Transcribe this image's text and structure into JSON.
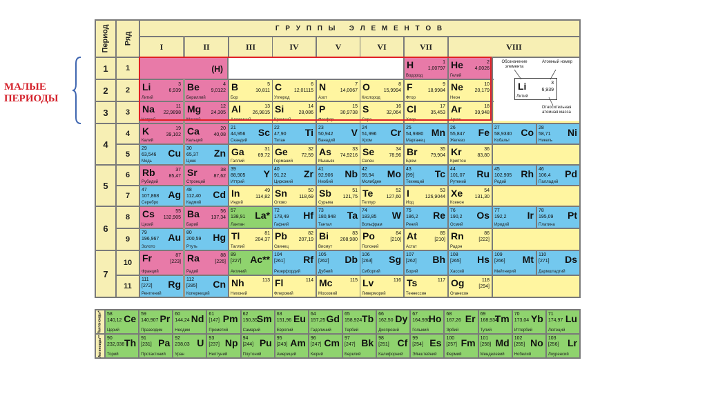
{
  "annotation": "МАЛЫЕ ПЕРИОДЫ",
  "header": {
    "period": "Период",
    "row": "Ряд",
    "groups_title": "Г Р У П П Ы   Э Л Е М Е Н Т О В",
    "groups": [
      "I",
      "II",
      "III",
      "IV",
      "V",
      "VI",
      "VII",
      "VIII"
    ]
  },
  "periods": [
    "1",
    "2",
    "3",
    "4",
    "5",
    "6",
    "7"
  ],
  "rows": [
    "1",
    "2",
    "3",
    "4",
    "5",
    "6",
    "7",
    "8",
    "9",
    "10",
    "11"
  ],
  "legend": {
    "designation": "Обозначение элемента",
    "atomic_number": "Атомный номер",
    "relative_mass": "Относительная атомная масса",
    "symbol": "Li",
    "number": "3",
    "mass": "6,939",
    "name": "Литий"
  },
  "row1_h_label": "(H)",
  "elements": [
    {
      "s": "H",
      "n": "1",
      "m": "1,00797",
      "nm": "Водород",
      "row": 1,
      "col": 6,
      "c": "p",
      "side": "L"
    },
    {
      "s": "He",
      "n": "2",
      "m": "4,0026",
      "nm": "Гелий",
      "row": 1,
      "col": 7,
      "c": "p",
      "side": "L"
    },
    {
      "s": "Li",
      "n": "3",
      "m": "6,939",
      "nm": "Литий",
      "row": 2,
      "col": 0,
      "c": "p",
      "side": "L"
    },
    {
      "s": "Be",
      "n": "4",
      "m": "9,0122",
      "nm": "Бериллий",
      "row": 2,
      "col": 1,
      "c": "p",
      "side": "L"
    },
    {
      "s": "B",
      "n": "5",
      "m": "10,811",
      "nm": "Бор",
      "row": 2,
      "col": 2,
      "c": "y",
      "side": "L"
    },
    {
      "s": "C",
      "n": "6",
      "m": "12,01115",
      "nm": "Углерод",
      "row": 2,
      "col": 3,
      "c": "y",
      "side": "L"
    },
    {
      "s": "N",
      "n": "7",
      "m": "14,0067",
      "nm": "Азот",
      "row": 2,
      "col": 4,
      "c": "y",
      "side": "L"
    },
    {
      "s": "O",
      "n": "8",
      "m": "15,9994",
      "nm": "Кислород",
      "row": 2,
      "col": 5,
      "c": "y",
      "side": "L"
    },
    {
      "s": "F",
      "n": "9",
      "m": "18,9984",
      "nm": "Фтор",
      "row": 2,
      "col": 6,
      "c": "y",
      "side": "L"
    },
    {
      "s": "Ne",
      "n": "10",
      "m": "20,179",
      "nm": "Неон",
      "row": 2,
      "col": 7,
      "c": "y",
      "side": "L"
    },
    {
      "s": "Na",
      "n": "11",
      "m": "22,9898",
      "nm": "Натрий",
      "row": 3,
      "col": 0,
      "c": "p",
      "side": "L"
    },
    {
      "s": "Mg",
      "n": "12",
      "m": "24,305",
      "nm": "Магний",
      "row": 3,
      "col": 1,
      "c": "p",
      "side": "L"
    },
    {
      "s": "Al",
      "n": "13",
      "m": "26,9815",
      "nm": "Алюминий",
      "row": 3,
      "col": 2,
      "c": "y",
      "side": "L"
    },
    {
      "s": "Si",
      "n": "14",
      "m": "28,086",
      "nm": "Кремний",
      "row": 3,
      "col": 3,
      "c": "y",
      "side": "L"
    },
    {
      "s": "P",
      "n": "15",
      "m": "30,9738",
      "nm": "Фосфор",
      "row": 3,
      "col": 4,
      "c": "y",
      "side": "L"
    },
    {
      "s": "S",
      "n": "16",
      "m": "32,064",
      "nm": "Сера",
      "row": 3,
      "col": 5,
      "c": "y",
      "side": "L"
    },
    {
      "s": "Cl",
      "n": "17",
      "m": "35,453",
      "nm": "Хлор",
      "row": 3,
      "col": 6,
      "c": "y",
      "side": "L"
    },
    {
      "s": "Ar",
      "n": "18",
      "m": "39,948",
      "nm": "Аргон",
      "row": 3,
      "col": 7,
      "c": "y",
      "side": "L"
    },
    {
      "s": "K",
      "n": "19",
      "m": "39,102",
      "nm": "Калий",
      "row": 4,
      "col": 0,
      "c": "p",
      "side": "L"
    },
    {
      "s": "Ca",
      "n": "20",
      "m": "40,08",
      "nm": "Кальций",
      "row": 4,
      "col": 1,
      "c": "p",
      "side": "L"
    },
    {
      "s": "Sc",
      "n": "21",
      "m": "44,956",
      "nm": "Скандий",
      "row": 4,
      "col": 2,
      "c": "b",
      "side": "R"
    },
    {
      "s": "Ti",
      "n": "22",
      "m": "47,90",
      "nm": "Титан",
      "row": 4,
      "col": 3,
      "c": "b",
      "side": "R"
    },
    {
      "s": "V",
      "n": "23",
      "m": "50,942",
      "nm": "Ванадий",
      "row": 4,
      "col": 4,
      "c": "b",
      "side": "R"
    },
    {
      "s": "Cr",
      "n": "24",
      "m": "51,996",
      "nm": "Хром",
      "row": 4,
      "col": 5,
      "c": "b",
      "side": "R"
    },
    {
      "s": "Mn",
      "n": "25",
      "m": "54,9380",
      "nm": "Марганец",
      "row": 4,
      "col": 6,
      "c": "b",
      "side": "R"
    },
    {
      "s": "Fe",
      "n": "26",
      "m": "55,847",
      "nm": "Железо",
      "row": 4,
      "col": 7,
      "c": "b",
      "side": "R"
    },
    {
      "s": "Co",
      "n": "27",
      "m": "58,9330",
      "nm": "Кобальт",
      "row": 4,
      "col": 8,
      "c": "b",
      "side": "R"
    },
    {
      "s": "Ni",
      "n": "28",
      "m": "58,71",
      "nm": "Никель",
      "row": 4,
      "col": 9,
      "c": "b",
      "side": "R"
    },
    {
      "s": "Cu",
      "n": "29",
      "m": "63,546",
      "nm": "Медь",
      "row": 5,
      "col": 0,
      "c": "b",
      "side": "R"
    },
    {
      "s": "Zn",
      "n": "30",
      "m": "65,37",
      "nm": "Цинк",
      "row": 5,
      "col": 1,
      "c": "b",
      "side": "R"
    },
    {
      "s": "Ga",
      "n": "31",
      "m": "69,72",
      "nm": "Галлий",
      "row": 5,
      "col": 2,
      "c": "y",
      "side": "L"
    },
    {
      "s": "Ge",
      "n": "32",
      "m": "72,59",
      "nm": "Германий",
      "row": 5,
      "col": 3,
      "c": "y",
      "side": "L"
    },
    {
      "s": "As",
      "n": "33",
      "m": "74,9216",
      "nm": "Мышьяк",
      "row": 5,
      "col": 4,
      "c": "y",
      "side": "L"
    },
    {
      "s": "Se",
      "n": "34",
      "m": "78,96",
      "nm": "Селен",
      "row": 5,
      "col": 5,
      "c": "y",
      "side": "L"
    },
    {
      "s": "Br",
      "n": "35",
      "m": "79,904",
      "nm": "Бром",
      "row": 5,
      "col": 6,
      "c": "y",
      "side": "L"
    },
    {
      "s": "Kr",
      "n": "36",
      "m": "83,80",
      "nm": "Криптон",
      "row": 5,
      "col": 7,
      "c": "y",
      "side": "L"
    },
    {
      "s": "Rb",
      "n": "37",
      "m": "85,47",
      "nm": "Рубидий",
      "row": 6,
      "col": 0,
      "c": "p",
      "side": "L"
    },
    {
      "s": "Sr",
      "n": "38",
      "m": "87,62",
      "nm": "Стронций",
      "row": 6,
      "col": 1,
      "c": "p",
      "side": "L"
    },
    {
      "s": "Y",
      "n": "39",
      "m": "88,905",
      "nm": "Иттрий",
      "row": 6,
      "col": 2,
      "c": "b",
      "side": "R"
    },
    {
      "s": "Zr",
      "n": "40",
      "m": "91,22",
      "nm": "Цирконий",
      "row": 6,
      "col": 3,
      "c": "b",
      "side": "R"
    },
    {
      "s": "Nb",
      "n": "41",
      "m": "92,906",
      "nm": "Ниобий",
      "row": 6,
      "col": 4,
      "c": "b",
      "side": "R"
    },
    {
      "s": "Mo",
      "n": "42",
      "m": "95,94",
      "nm": "Молибден",
      "row": 6,
      "col": 5,
      "c": "b",
      "side": "R"
    },
    {
      "s": "Tc",
      "n": "43",
      "m": "[99]",
      "nm": "Технеций",
      "row": 6,
      "col": 6,
      "c": "b",
      "side": "R"
    },
    {
      "s": "Ru",
      "n": "44",
      "m": "101,07",
      "nm": "Рутений",
      "row": 6,
      "col": 7,
      "c": "b",
      "side": "R"
    },
    {
      "s": "Rh",
      "n": "45",
      "m": "102,905",
      "nm": "Родий",
      "row": 6,
      "col": 8,
      "c": "b",
      "side": "R"
    },
    {
      "s": "Pd",
      "n": "46",
      "m": "106,4",
      "nm": "Палладий",
      "row": 6,
      "col": 9,
      "c": "b",
      "side": "R"
    },
    {
      "s": "Ag",
      "n": "47",
      "m": "107,868",
      "nm": "Серебро",
      "row": 7,
      "col": 0,
      "c": "b",
      "side": "R"
    },
    {
      "s": "Cd",
      "n": "48",
      "m": "112,40",
      "nm": "Кадмий",
      "row": 7,
      "col": 1,
      "c": "b",
      "side": "R"
    },
    {
      "s": "In",
      "n": "49",
      "m": "114,82",
      "nm": "Индий",
      "row": 7,
      "col": 2,
      "c": "y",
      "side": "L"
    },
    {
      "s": "Sn",
      "n": "50",
      "m": "118,69",
      "nm": "Олово",
      "row": 7,
      "col": 3,
      "c": "y",
      "side": "L"
    },
    {
      "s": "Sb",
      "n": "51",
      "m": "121,75",
      "nm": "Сурьма",
      "row": 7,
      "col": 4,
      "c": "y",
      "side": "L"
    },
    {
      "s": "Te",
      "n": "52",
      "m": "127,60",
      "nm": "Теллур",
      "row": 7,
      "col": 5,
      "c": "y",
      "side": "L"
    },
    {
      "s": "I",
      "n": "53",
      "m": "126,9044",
      "nm": "Иод",
      "row": 7,
      "col": 6,
      "c": "y",
      "side": "L"
    },
    {
      "s": "Xe",
      "n": "54",
      "m": "131,30",
      "nm": "Ксенон",
      "row": 7,
      "col": 7,
      "c": "y",
      "side": "L"
    },
    {
      "s": "Cs",
      "n": "55",
      "m": "132,905",
      "nm": "Цезий",
      "row": 8,
      "col": 0,
      "c": "p",
      "side": "L"
    },
    {
      "s": "Ba",
      "n": "56",
      "m": "137,34",
      "nm": "Барий",
      "row": 8,
      "col": 1,
      "c": "p",
      "side": "L"
    },
    {
      "s": "La*",
      "n": "57",
      "m": "138,91",
      "nm": "Лантан",
      "row": 8,
      "col": 2,
      "c": "g",
      "side": "R"
    },
    {
      "s": "Hf",
      "n": "72",
      "m": "178,49",
      "nm": "Гафний",
      "row": 8,
      "col": 3,
      "c": "b",
      "side": "R"
    },
    {
      "s": "Ta",
      "n": "73",
      "m": "180,948",
      "nm": "Тантал",
      "row": 8,
      "col": 4,
      "c": "b",
      "side": "R"
    },
    {
      "s": "W",
      "n": "74",
      "m": "183,85",
      "nm": "Вольфрам",
      "row": 8,
      "col": 5,
      "c": "b",
      "side": "R"
    },
    {
      "s": "Re",
      "n": "75",
      "m": "186,2",
      "nm": "Рений",
      "row": 8,
      "col": 6,
      "c": "b",
      "side": "R"
    },
    {
      "s": "Os",
      "n": "76",
      "m": "190,2",
      "nm": "Осмий",
      "row": 8,
      "col": 7,
      "c": "b",
      "side": "R"
    },
    {
      "s": "Ir",
      "n": "77",
      "m": "192,2",
      "nm": "Иридий",
      "row": 8,
      "col": 8,
      "c": "b",
      "side": "R"
    },
    {
      "s": "Pt",
      "n": "78",
      "m": "195,09",
      "nm": "Платина",
      "row": 8,
      "col": 9,
      "c": "b",
      "side": "R"
    },
    {
      "s": "Au",
      "n": "79",
      "m": "196,967",
      "nm": "Золото",
      "row": 9,
      "col": 0,
      "c": "b",
      "side": "R"
    },
    {
      "s": "Hg",
      "n": "80",
      "m": "200,59",
      "nm": "Ртуть",
      "row": 9,
      "col": 1,
      "c": "b",
      "side": "R"
    },
    {
      "s": "Tl",
      "n": "81",
      "m": "204,37",
      "nm": "Таллий",
      "row": 9,
      "col": 2,
      "c": "y",
      "side": "L"
    },
    {
      "s": "Pb",
      "n": "82",
      "m": "207,19",
      "nm": "Свинец",
      "row": 9,
      "col": 3,
      "c": "y",
      "side": "L"
    },
    {
      "s": "Bi",
      "n": "83",
      "m": "208,980",
      "nm": "Висмут",
      "row": 9,
      "col": 4,
      "c": "y",
      "side": "L"
    },
    {
      "s": "Po",
      "n": "84",
      "m": "[210]",
      "nm": "Полоний",
      "row": 9,
      "col": 5,
      "c": "y",
      "side": "L"
    },
    {
      "s": "At",
      "n": "85",
      "m": "[210]",
      "nm": "Астат",
      "row": 9,
      "col": 6,
      "c": "y",
      "side": "L"
    },
    {
      "s": "Rn",
      "n": "86",
      "m": "[222]",
      "nm": "Радон",
      "row": 9,
      "col": 7,
      "c": "y",
      "side": "L"
    },
    {
      "s": "Fr",
      "n": "87",
      "m": "[223]",
      "nm": "Франций",
      "row": 10,
      "col": 0,
      "c": "p",
      "side": "L"
    },
    {
      "s": "Ra",
      "n": "88",
      "m": "[226]",
      "nm": "Радий",
      "row": 10,
      "col": 1,
      "c": "p",
      "side": "L"
    },
    {
      "s": "Ac**",
      "n": "89",
      "m": "[227]",
      "nm": "Актиний",
      "row": 10,
      "col": 2,
      "c": "g",
      "side": "R"
    },
    {
      "s": "Rf",
      "n": "104",
      "m": "[261]",
      "nm": "Резерфордий",
      "row": 10,
      "col": 3,
      "c": "b",
      "side": "R"
    },
    {
      "s": "Db",
      "n": "105",
      "m": "[262]",
      "nm": "Дубний",
      "row": 10,
      "col": 4,
      "c": "b",
      "side": "R"
    },
    {
      "s": "Sg",
      "n": "106",
      "m": "[263]",
      "nm": "Сиборгий",
      "row": 10,
      "col": 5,
      "c": "b",
      "side": "R"
    },
    {
      "s": "Bh",
      "n": "107",
      "m": "[262]",
      "nm": "Борий",
      "row": 10,
      "col": 6,
      "c": "b",
      "side": "R"
    },
    {
      "s": "Hs",
      "n": "108",
      "m": "[265]",
      "nm": "Хассий",
      "row": 10,
      "col": 7,
      "c": "b",
      "side": "R"
    },
    {
      "s": "Mt",
      "n": "109",
      "m": "[266]",
      "nm": "Мейтнерий",
      "row": 10,
      "col": 8,
      "c": "b",
      "side": "R"
    },
    {
      "s": "Ds",
      "n": "110",
      "m": "[271]",
      "nm": "Дармштадтий",
      "row": 10,
      "col": 9,
      "c": "b",
      "side": "R"
    },
    {
      "s": "Rg",
      "n": "111",
      "m": "[272]",
      "nm": "Рентгений",
      "row": 11,
      "col": 0,
      "c": "b",
      "side": "R"
    },
    {
      "s": "Cn",
      "n": "112",
      "m": "[285]",
      "nm": "Коперниций",
      "row": 11,
      "col": 1,
      "c": "b",
      "side": "R"
    },
    {
      "s": "Nh",
      "n": "113",
      "m": "",
      "nm": "Нихоний",
      "row": 11,
      "col": 2,
      "c": "y",
      "side": "L"
    },
    {
      "s": "Fl",
      "n": "114",
      "m": "",
      "nm": "Флеровий",
      "row": 11,
      "col": 3,
      "c": "y",
      "side": "L"
    },
    {
      "s": "Mc",
      "n": "115",
      "m": "",
      "nm": "Московий",
      "row": 11,
      "col": 4,
      "c": "y",
      "side": "L"
    },
    {
      "s": "Lv",
      "n": "116",
      "m": "",
      "nm": "Ливерморий",
      "row": 11,
      "col": 5,
      "c": "y",
      "side": "L"
    },
    {
      "s": "Ts",
      "n": "117",
      "m": "",
      "nm": "Теннессин",
      "row": 11,
      "col": 6,
      "c": "y",
      "side": "L"
    },
    {
      "s": "Og",
      "n": "118",
      "m": "[294]",
      "nm": "Оганесон",
      "row": 11,
      "col": 7,
      "c": "y",
      "side": "L"
    }
  ],
  "series_labels": [
    "Лантаноиды*",
    "Актиноиды**"
  ],
  "lanthanides": [
    {
      "s": "Ce",
      "n": "58",
      "m": "140,12",
      "nm": "Церий"
    },
    {
      "s": "Pr",
      "n": "59",
      "m": "140,907",
      "nm": "Празеодим"
    },
    {
      "s": "Nd",
      "n": "60",
      "m": "144,24",
      "nm": "Неодим"
    },
    {
      "s": "Pm",
      "n": "61",
      "m": "[147]",
      "nm": "Прометий"
    },
    {
      "s": "Sm",
      "n": "62",
      "m": "150,35",
      "nm": "Самарий"
    },
    {
      "s": "Eu",
      "n": "63",
      "m": "151,96",
      "nm": "Европий"
    },
    {
      "s": "Gd",
      "n": "64",
      "m": "157,25",
      "nm": "Гадолиний"
    },
    {
      "s": "Tb",
      "n": "65",
      "m": "158,924",
      "nm": "Тербий"
    },
    {
      "s": "Dy",
      "n": "66",
      "m": "162,50",
      "nm": "Диспрозий"
    },
    {
      "s": "Ho",
      "n": "67",
      "m": "164,930",
      "nm": "Гольмий"
    },
    {
      "s": "Er",
      "n": "68",
      "m": "167,26",
      "nm": "Эрбий"
    },
    {
      "s": "Tm",
      "n": "69",
      "m": "168,934",
      "nm": "Тулий"
    },
    {
      "s": "Yb",
      "n": "70",
      "m": "173,04",
      "nm": "Иттербий"
    },
    {
      "s": "Lu",
      "n": "71",
      "m": "174,97",
      "nm": "Лютеций"
    }
  ],
  "actinides": [
    {
      "s": "Th",
      "n": "90",
      "m": "232,038",
      "nm": "Торий"
    },
    {
      "s": "Pa",
      "n": "91",
      "m": "[231]",
      "nm": "Протактиний"
    },
    {
      "s": "U",
      "n": "92",
      "m": "238,03",
      "nm": "Уран"
    },
    {
      "s": "Np",
      "n": "93",
      "m": "[237]",
      "nm": "Нептуний"
    },
    {
      "s": "Pu",
      "n": "94",
      "m": "[244]",
      "nm": "Плутоний"
    },
    {
      "s": "Am",
      "n": "95",
      "m": "[243]",
      "nm": "Америций"
    },
    {
      "s": "Cm",
      "n": "96",
      "m": "[247]",
      "nm": "Кюрий"
    },
    {
      "s": "Bk",
      "n": "97",
      "m": "[247]",
      "nm": "Берклий"
    },
    {
      "s": "Cf",
      "n": "98",
      "m": "[251]",
      "nm": "Калифорний"
    },
    {
      "s": "Es",
      "n": "99",
      "m": "[254]",
      "nm": "Эйнштейний"
    },
    {
      "s": "Fm",
      "n": "100",
      "m": "[257]",
      "nm": "Фермий"
    },
    {
      "s": "Md",
      "n": "101",
      "m": "[258]",
      "nm": "Менделевий"
    },
    {
      "s": "No",
      "n": "102",
      "m": "[255]",
      "nm": "Нобелий"
    },
    {
      "s": "Lr",
      "n": "103",
      "m": "[256]",
      "nm": "Лоуренсий"
    }
  ],
  "colors": {
    "s": "#e87aa8",
    "p": "#fff5a0",
    "d": "#73c8ee",
    "f": "#8fd36e",
    "frame": "#e01f26"
  }
}
